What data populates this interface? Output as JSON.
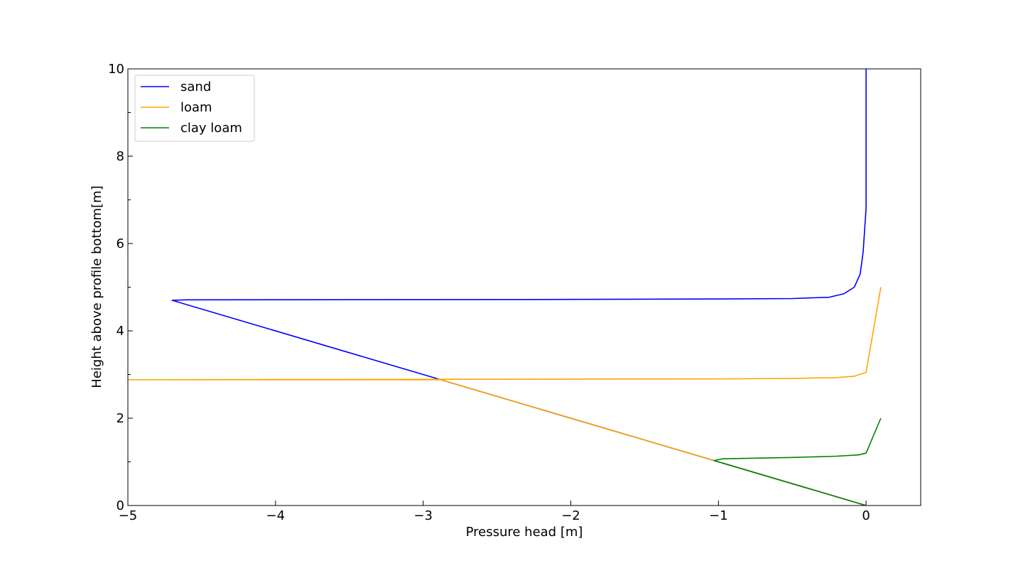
{
  "chart_data": {
    "type": "line",
    "title": "",
    "xlabel": "Pressure head [m]",
    "ylabel": "Height above profile bottom[m]",
    "xlim": [
      -5,
      0.37
    ],
    "ylim": [
      0,
      10
    ],
    "x_ticks": [
      -5,
      -4,
      -3,
      -2,
      -1,
      0
    ],
    "x_tick_labels": [
      "−5",
      "−4",
      "−3",
      "−2",
      "−1",
      "0"
    ],
    "y_ticks": [
      0,
      2,
      4,
      6,
      8,
      10
    ],
    "y_tick_labels": [
      "0",
      "2",
      "4",
      "6",
      "8",
      "10"
    ],
    "grid": false,
    "legend_position": "top-left",
    "series": [
      {
        "name": "sand",
        "color": "#0000ff",
        "x": [
          0,
          -2.9,
          -4.7,
          -4.6,
          -2,
          -1,
          -0.5,
          -0.25,
          -0.15,
          -0.08,
          -0.04,
          -0.02,
          0,
          0,
          0
        ],
        "y": [
          0,
          2.9,
          4.7,
          4.71,
          4.72,
          4.73,
          4.74,
          4.77,
          4.85,
          5.0,
          5.3,
          5.8,
          6.8,
          8,
          10
        ]
      },
      {
        "name": "loam",
        "color": "#ffa500",
        "x": [
          0,
          -1.03,
          -2.88,
          -5,
          -3,
          -1,
          -0.5,
          -0.2,
          -0.08,
          0,
          0.1
        ],
        "y": [
          0,
          1.03,
          2.88,
          2.88,
          2.89,
          2.9,
          2.91,
          2.93,
          2.96,
          3.05,
          5.0
        ]
      },
      {
        "name": "clay loam",
        "color": "#008000",
        "x": [
          0,
          -1.03,
          -0.97,
          -0.5,
          -0.2,
          -0.05,
          0,
          0.1
        ],
        "y": [
          0,
          1.03,
          1.07,
          1.1,
          1.13,
          1.16,
          1.2,
          2.0
        ]
      }
    ]
  }
}
